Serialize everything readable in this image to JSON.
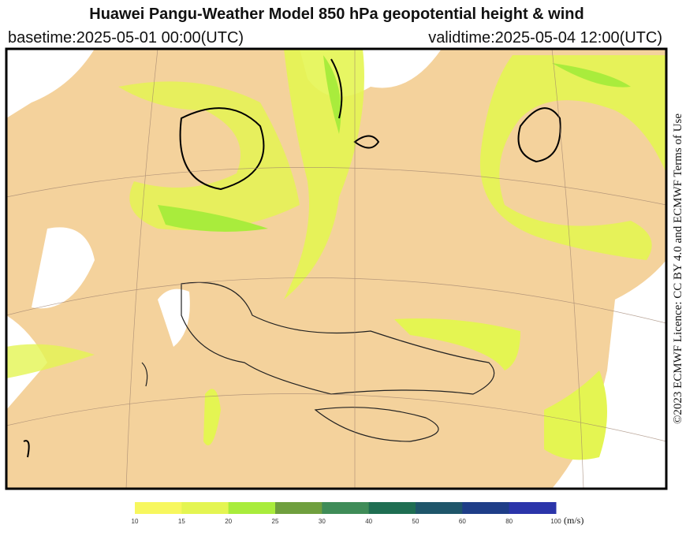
{
  "header": {
    "title": "Huawei Pangu-Weather Model 850 hPa geopotential height & wind",
    "basetime": "basetime:2025-05-01 00:00(UTC)",
    "validtime": "validtime:2025-05-04 12:00(UTC)"
  },
  "licence": "©2023 ECMWF Licence: CC BY 4.0 and ECMWF Terms of Use",
  "colorbar": {
    "ticks": [
      10,
      15,
      20,
      25,
      30,
      40,
      50,
      60,
      80,
      100
    ],
    "colors": [
      "#f7f75e",
      "#e4f552",
      "#a9ec3c",
      "#6f9f3e",
      "#3f8c58",
      "#1f6e52",
      "#1f566a",
      "#1f3e88",
      "#2b35aa"
    ],
    "unit": "(m/s)"
  }
}
